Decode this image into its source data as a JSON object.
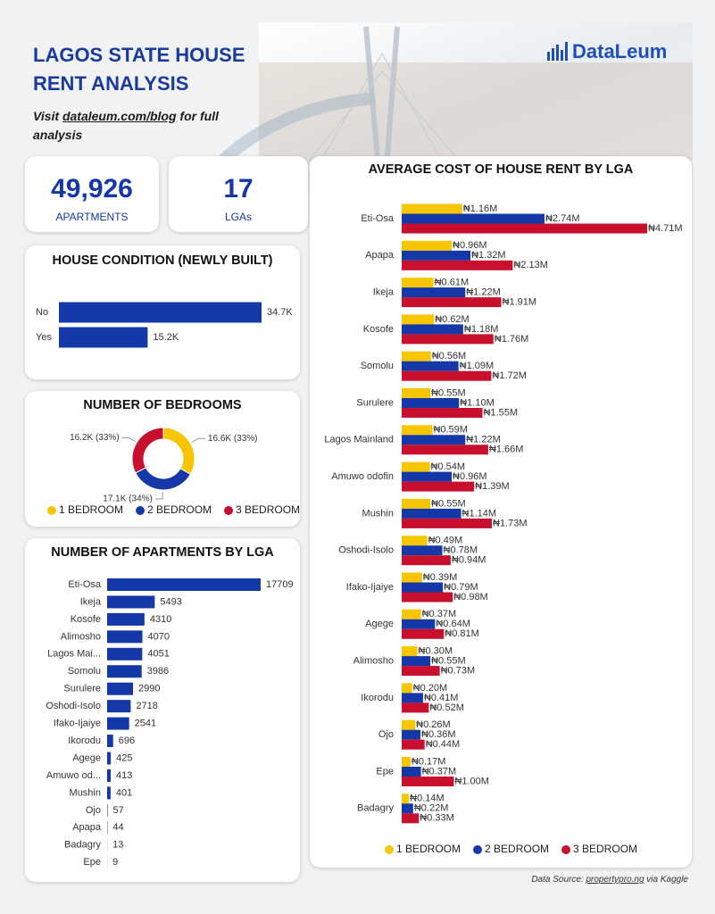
{
  "header": {
    "title": "LAGOS STATE HOUSE RENT ANALYSIS",
    "subtitle": {
      "prefix": "Visit",
      "link": "dataleum.com/blog",
      "suffix": "for full analysis"
    },
    "logo": "DataLeum"
  },
  "kpis": [
    {
      "value": "49,926",
      "label": "APARTMENTS"
    },
    {
      "value": 17,
      "label": "LGAs"
    }
  ],
  "chart_data": [
    {
      "type": "bar",
      "orientation": "horizontal",
      "title": "HOUSE CONDITION (NEWLY BUILT)",
      "categories": [
        "No",
        "Yes"
      ],
      "values": [
        34700,
        15200
      ],
      "value_labels": [
        "34.7K",
        "15.2K"
      ],
      "color": "#1538a8"
    },
    {
      "type": "donut",
      "title": "NUMBER OF BEDROOMS",
      "categories": [
        "1 BEDROOM",
        "2 BEDROOM",
        "3 BEDROOM"
      ],
      "values": [
        16600,
        17100,
        16200
      ],
      "value_labels": [
        "16.6K (33%)",
        "17.1K (34%)",
        "16.2K (33%)"
      ],
      "colors": [
        "#f7c600",
        "#1538a8",
        "#c8102e"
      ]
    },
    {
      "type": "bar",
      "orientation": "horizontal",
      "title": "NUMBER OF APARTMENTS BY LGA",
      "categories": [
        "Eti-Osa",
        "Ikeja",
        "Kosofe",
        "Alimosho",
        "Lagos Mai...",
        "Somolu",
        "Surulere",
        "Oshodi-Isolo",
        "Ifako-Ijaiye",
        "Ikorodu",
        "Agege",
        "Amuwo od...",
        "Mushin",
        "Ojo",
        "Apapa",
        "Badagry",
        "Epe"
      ],
      "values": [
        17709,
        5493,
        4310,
        4070,
        4051,
        3986,
        2990,
        2718,
        2541,
        696,
        425,
        413,
        401,
        57,
        44,
        13,
        9
      ],
      "color": "#1538a8"
    },
    {
      "type": "bar",
      "orientation": "horizontal",
      "title": "AVERAGE COST OF HOUSE RENT BY LGA",
      "categories": [
        "Eti-Osa",
        "Apapa",
        "Ikeja",
        "Kosofe",
        "Somolu",
        "Surulere",
        "Lagos Mainland",
        "Amuwo odofin",
        "Mushin",
        "Oshodi-Isolo",
        "Ifako-Ijaiye",
        "Agege",
        "Alimosho",
        "Ikorodu",
        "Ojo",
        "Epe",
        "Badagry"
      ],
      "series": [
        {
          "name": "1 BEDROOM",
          "color": "#f7c600",
          "values": [
            1.16,
            0.96,
            0.61,
            0.62,
            0.56,
            0.55,
            0.59,
            0.54,
            0.55,
            0.49,
            0.39,
            0.37,
            0.3,
            0.2,
            0.26,
            0.17,
            0.14
          ],
          "value_labels": [
            "₦1.16M",
            "₦0.96M",
            "₦0.61M",
            "₦0.62M",
            "₦0.56M",
            "₦0.55M",
            "₦0.59M",
            "₦0.54M",
            "₦0.55M",
            "₦0.49M",
            "₦0.39M",
            "₦0.37M",
            "₦0.30M",
            "₦0.20M",
            "₦0.26M",
            "₦0.17M",
            "₦0.14M"
          ]
        },
        {
          "name": "2 BEDROOM",
          "color": "#1538a8",
          "values": [
            2.74,
            1.32,
            1.22,
            1.18,
            1.09,
            1.1,
            1.22,
            0.96,
            1.14,
            0.78,
            0.79,
            0.64,
            0.55,
            0.41,
            0.36,
            0.37,
            0.22
          ],
          "value_labels": [
            "₦2.74M",
            "₦1.32M",
            "₦1.22M",
            "₦1.18M",
            "₦1.09M",
            "₦1.10M",
            "₦1.22M",
            "₦0.96M",
            "₦1.14M",
            "₦0.78M",
            "₦0.79M",
            "₦0.64M",
            "₦0.55M",
            "₦0.41M",
            "₦0.36M",
            "₦0.37M",
            "₦0.22M"
          ]
        },
        {
          "name": "3 BEDROOM",
          "color": "#c8102e",
          "values": [
            4.71,
            2.13,
            1.91,
            1.76,
            1.72,
            1.55,
            1.66,
            1.39,
            1.73,
            0.94,
            0.98,
            0.81,
            0.73,
            0.52,
            0.44,
            1.0,
            0.33
          ],
          "value_labels": [
            "₦4.71M",
            "₦2.13M",
            "₦1.91M",
            "₦1.76M",
            "₦1.72M",
            "₦1.55M",
            "₦1.66M",
            "₦1.39M",
            "₦1.73M",
            "₦0.94M",
            "₦0.98M",
            "₦0.81M",
            "₦0.73M",
            "₦0.52M",
            "₦0.44M",
            "₦1.00M",
            "₦0.33M"
          ]
        }
      ]
    }
  ],
  "footer": {
    "prefix": "Data Source:",
    "link": "propertypro.ng",
    "suffix": "via Kaggle"
  }
}
